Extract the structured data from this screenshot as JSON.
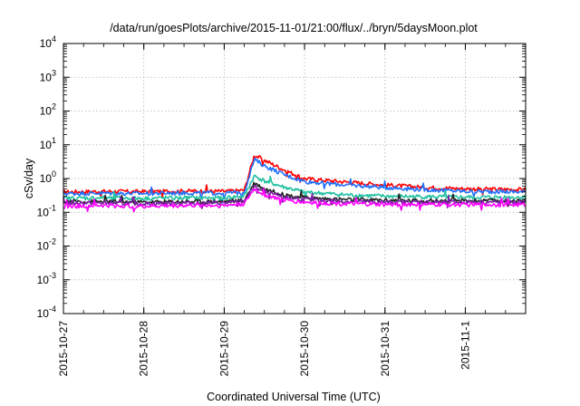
{
  "chart_data": {
    "type": "line",
    "title": "/data/run/goesPlots/archive/2015-11-01/21:00/flux/../bryn/5daysMoon.plot",
    "xlabel": "Coordinated Universal Time (UTC)",
    "ylabel": "cSv/day",
    "y_scale": "log",
    "ylim": [
      0.0001,
      10000
    ],
    "xlim": [
      "2015-10-27 00:00",
      "2015-11-01 18:00"
    ],
    "grid": true,
    "legend": "none",
    "y_ticks": [
      {
        "value": 0.0001,
        "base": "10",
        "exp": "-4"
      },
      {
        "value": 0.001,
        "base": "10",
        "exp": "-3"
      },
      {
        "value": 0.01,
        "base": "10",
        "exp": "-2"
      },
      {
        "value": 0.1,
        "base": "10",
        "exp": "-1"
      },
      {
        "value": 1,
        "base": "10",
        "exp": "0"
      },
      {
        "value": 10,
        "base": "10",
        "exp": "1"
      },
      {
        "value": 100,
        "base": "10",
        "exp": "2"
      },
      {
        "value": 1000,
        "base": "10",
        "exp": "3"
      },
      {
        "value": 10000,
        "base": "10",
        "exp": "4"
      }
    ],
    "x_ticks": [
      "2015-10-27",
      "2015-10-28",
      "2015-10-29",
      "2015-10-30",
      "2015-10-31",
      "2015-11-1"
    ],
    "x": [
      "2015-10-27 00:00",
      "2015-10-27 12:00",
      "2015-10-28 00:00",
      "2015-10-28 12:00",
      "2015-10-29 00:00",
      "2015-10-29 06:00",
      "2015-10-29 09:00",
      "2015-10-29 12:00",
      "2015-10-29 18:00",
      "2015-10-30 00:00",
      "2015-10-30 12:00",
      "2015-10-31 00:00",
      "2015-10-31 12:00",
      "2015-11-01 00:00",
      "2015-11-01 12:00",
      "2015-11-01 18:00"
    ],
    "series": [
      {
        "color": "#ff0000",
        "values": [
          0.4,
          0.42,
          0.41,
          0.43,
          0.42,
          0.45,
          5.0,
          3.5,
          1.8,
          1.0,
          0.8,
          0.65,
          0.55,
          0.5,
          0.48,
          0.47
        ]
      },
      {
        "color": "#1f6fff",
        "values": [
          0.36,
          0.37,
          0.36,
          0.38,
          0.37,
          0.4,
          3.7,
          2.4,
          1.3,
          0.82,
          0.65,
          0.55,
          0.47,
          0.42,
          0.41,
          0.4
        ]
      },
      {
        "color": "#20c0a0",
        "values": [
          0.26,
          0.27,
          0.26,
          0.27,
          0.27,
          0.3,
          1.2,
          0.85,
          0.55,
          0.4,
          0.33,
          0.3,
          0.29,
          0.28,
          0.28,
          0.28
        ]
      },
      {
        "color": "#222222",
        "values": [
          0.21,
          0.21,
          0.2,
          0.21,
          0.21,
          0.23,
          0.75,
          0.5,
          0.33,
          0.27,
          0.24,
          0.23,
          0.22,
          0.22,
          0.22,
          0.22
        ]
      },
      {
        "color": "#7a1fa2",
        "values": [
          0.19,
          0.19,
          0.18,
          0.19,
          0.19,
          0.21,
          0.6,
          0.4,
          0.28,
          0.24,
          0.21,
          0.2,
          0.2,
          0.2,
          0.2,
          0.2
        ]
      },
      {
        "color": "#ff00ff",
        "values": [
          0.15,
          0.16,
          0.15,
          0.16,
          0.16,
          0.18,
          0.5,
          0.33,
          0.23,
          0.2,
          0.18,
          0.17,
          0.17,
          0.17,
          0.17,
          0.17
        ]
      }
    ]
  }
}
